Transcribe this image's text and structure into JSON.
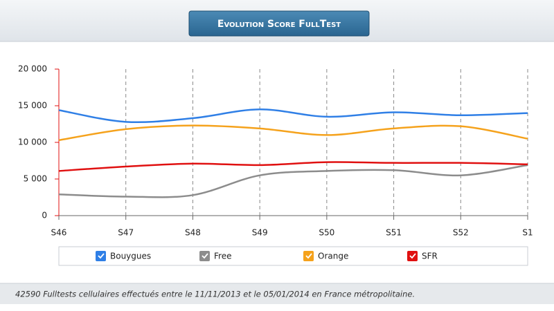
{
  "chart_data": {
    "type": "line",
    "title": "Evolution Score FullTest",
    "categories": [
      "S46",
      "S47",
      "S48",
      "S49",
      "S50",
      "S51",
      "S52",
      "S1"
    ],
    "series": [
      {
        "name": "Bouygues",
        "color": "#2f7fe6",
        "values": [
          14400,
          12800,
          13300,
          14500,
          13500,
          14100,
          13700,
          14000
        ]
      },
      {
        "name": "Free",
        "color": "#8c8c8c",
        "values": [
          2900,
          2600,
          2800,
          5500,
          6100,
          6200,
          5500,
          6900
        ]
      },
      {
        "name": "Orange",
        "color": "#f5a21c",
        "values": [
          10300,
          11800,
          12300,
          11900,
          11000,
          11900,
          12200,
          10500
        ]
      },
      {
        "name": "SFR",
        "color": "#e01010",
        "values": [
          6100,
          6700,
          7100,
          6900,
          7300,
          7200,
          7200,
          7000
        ]
      }
    ],
    "ylim": [
      0,
      20000
    ],
    "yticks": [
      0,
      {
        "value": 5000,
        "label": "5 000"
      },
      {
        "value": 10000,
        "label": "10 000"
      },
      {
        "value": 15000,
        "label": "15 000"
      },
      {
        "value": 20000,
        "label": "20 000"
      }
    ],
    "footnote": "42590 Fulltests cellulaires effectués entre le 11/11/2013 et le 05/01/2014 en France métropolitaine."
  }
}
